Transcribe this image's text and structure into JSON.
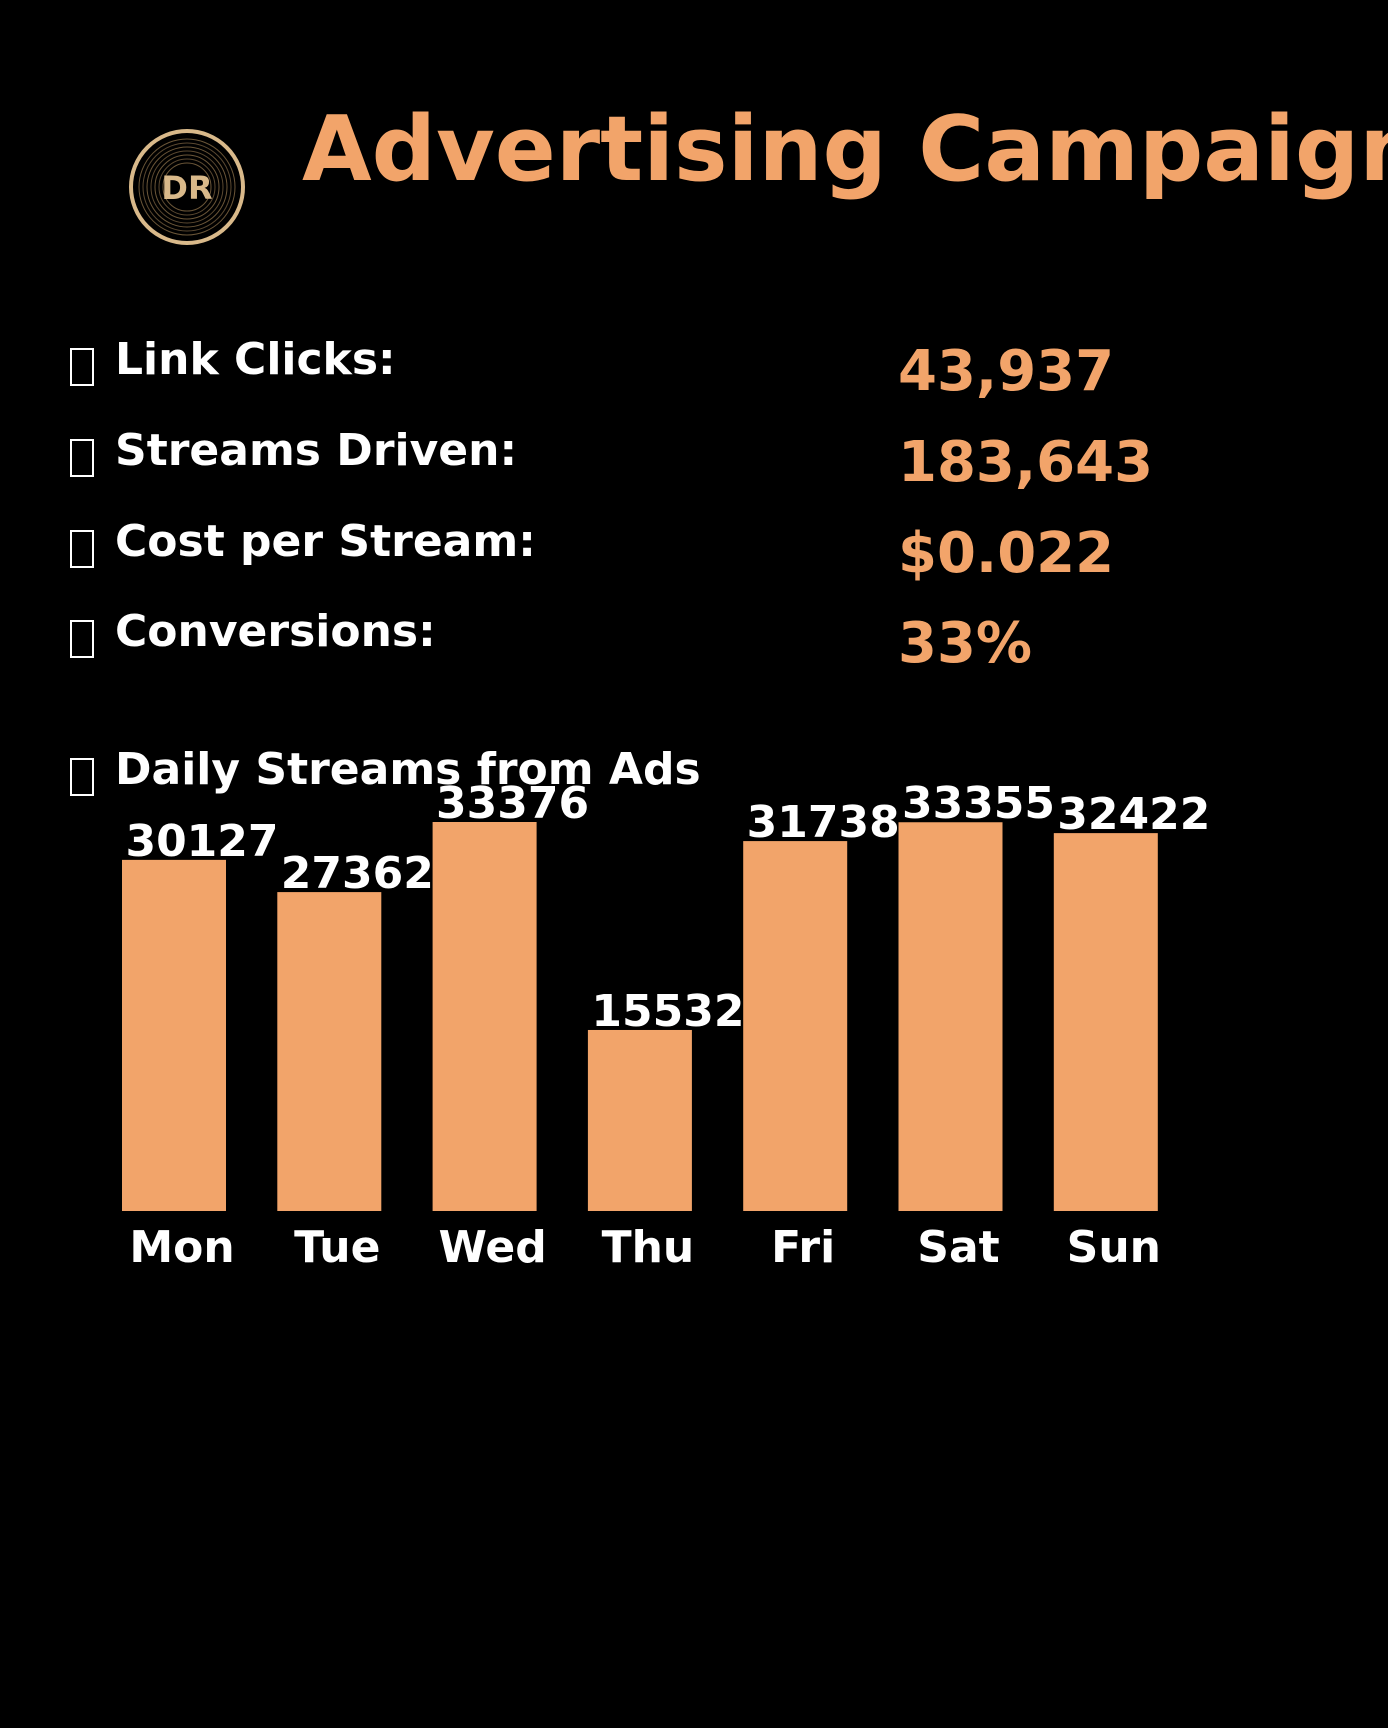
{
  "header": {
    "logo_text": "DR",
    "title": "Advertising Campaign"
  },
  "metrics": [
    {
      "icon": "missing-glyph-icon",
      "label": "Link Clicks:",
      "value": "43,937"
    },
    {
      "icon": "missing-glyph-icon",
      "label": "Streams Driven:",
      "value": "183,643"
    },
    {
      "icon": "missing-glyph-icon",
      "label": "Cost per Stream:",
      "value": "$0.022"
    },
    {
      "icon": "missing-glyph-icon",
      "label": "Conversions:",
      "value": "33%"
    }
  ],
  "chart_heading": {
    "icon": "missing-glyph-icon",
    "label": "Daily Streams from Ads"
  },
  "colors": {
    "background": "#000000",
    "accent": "#F2A46A",
    "text": "#ffffff",
    "logo_ring": "#D9B98A"
  },
  "chart_data": {
    "type": "bar",
    "categories": [
      "Mon",
      "Tue",
      "Wed",
      "Thu",
      "Fri",
      "Sat",
      "Sun"
    ],
    "values": [
      30127,
      27362,
      33376,
      15532,
      31738,
      33355,
      32422
    ],
    "title": "Daily Streams from Ads",
    "xlabel": "",
    "ylabel": "",
    "ylim": [
      0,
      33376
    ],
    "grid": false,
    "data_labels": true,
    "bar_color": "#F2A46A"
  }
}
